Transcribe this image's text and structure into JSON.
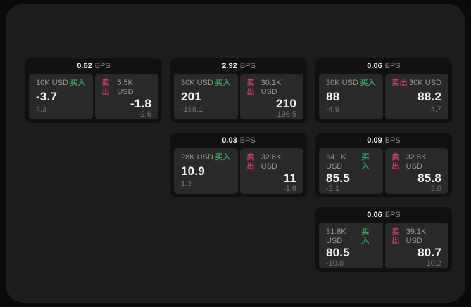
{
  "theme": {
    "outer_bg": "#0a0a0a",
    "panel_bg": "#1d1d1d",
    "card_bg": "#111111",
    "tile_bg": "#29292a",
    "text_primary": "#f5f5f5",
    "text_secondary": "#9a9a9a",
    "text_tertiary": "#757575",
    "buy_color": "#2f9e60",
    "sell_color": "#c73e5e"
  },
  "labels": {
    "bps": "BPS",
    "buy": "买入",
    "sell": "卖出"
  },
  "cards": [
    {
      "bps": "0.62",
      "buy": {
        "amount": "10K USD",
        "value": "-3.7",
        "sub": "4.3"
      },
      "sell": {
        "amount": "5.5K USD",
        "value": "-1.8",
        "sub": "-2.6"
      }
    },
    {
      "bps": "2.92",
      "buy": {
        "amount": "30K USD",
        "value": "201",
        "sub": "-188.1"
      },
      "sell": {
        "amount": "30.1K USD",
        "value": "210",
        "sub": "196.5"
      }
    },
    {
      "bps": "0.06",
      "buy": {
        "amount": "30K USD",
        "value": "88",
        "sub": "-4.9"
      },
      "sell": {
        "amount": "30K USD",
        "value": "88.2",
        "sub": "4.7"
      }
    },
    {
      "bps": "0.03",
      "buy": {
        "amount": "28K USD",
        "value": "10.9",
        "sub": "1.3"
      },
      "sell": {
        "amount": "32.6K USD",
        "value": "11",
        "sub": "-1.8"
      }
    },
    {
      "bps": "0.09",
      "buy": {
        "amount": "34.1K USD",
        "value": "85.5",
        "sub": "-3.1"
      },
      "sell": {
        "amount": "32.8K USD",
        "value": "85.8",
        "sub": "3.0"
      }
    },
    {
      "bps": "0.06",
      "buy": {
        "amount": "31.8K USD",
        "value": "80.5",
        "sub": "-10.8"
      },
      "sell": {
        "amount": "39.1K USD",
        "value": "80.7",
        "sub": "10.2"
      }
    }
  ]
}
